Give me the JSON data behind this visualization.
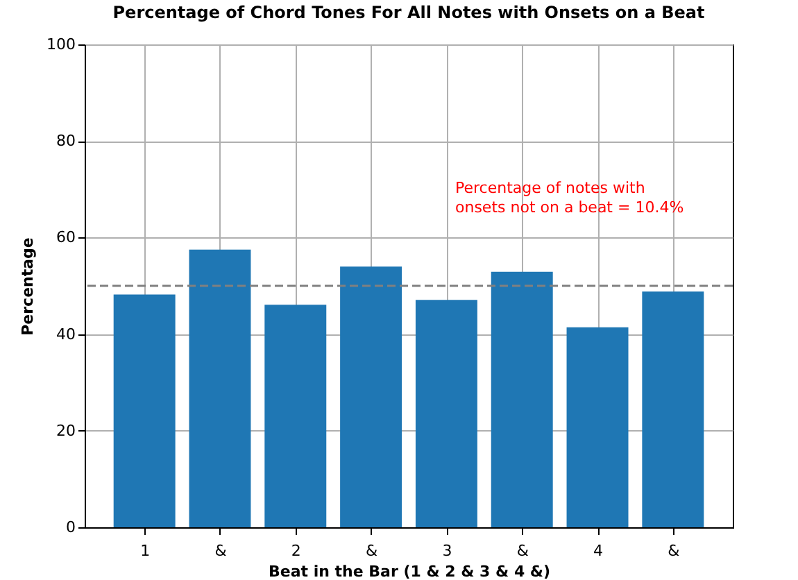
{
  "chart_data": {
    "type": "bar",
    "title": "Percentage of Chord Tones For All Notes with Onsets on a Beat",
    "xlabel": "Beat in the Bar (1  &  2  &  3  &  4  &)",
    "ylabel": "Percentage",
    "categories": [
      "1",
      "&",
      "2",
      "&",
      "3",
      "&",
      "4",
      "&"
    ],
    "values": [
      48.2,
      57.5,
      46.1,
      54.0,
      47.1,
      52.9,
      41.4,
      48.8
    ],
    "color": "#1f77b4",
    "ylim": [
      0,
      100
    ],
    "yticks": [
      0,
      20,
      40,
      60,
      80,
      100
    ],
    "grid": true,
    "ref_lines": [
      {
        "axis": "y",
        "value": 50,
        "color": "#808080",
        "line_style": "dashed"
      }
    ],
    "annotations": [
      "Percentage of notes with\nonsets not on a beat = 10.4%"
    ]
  }
}
